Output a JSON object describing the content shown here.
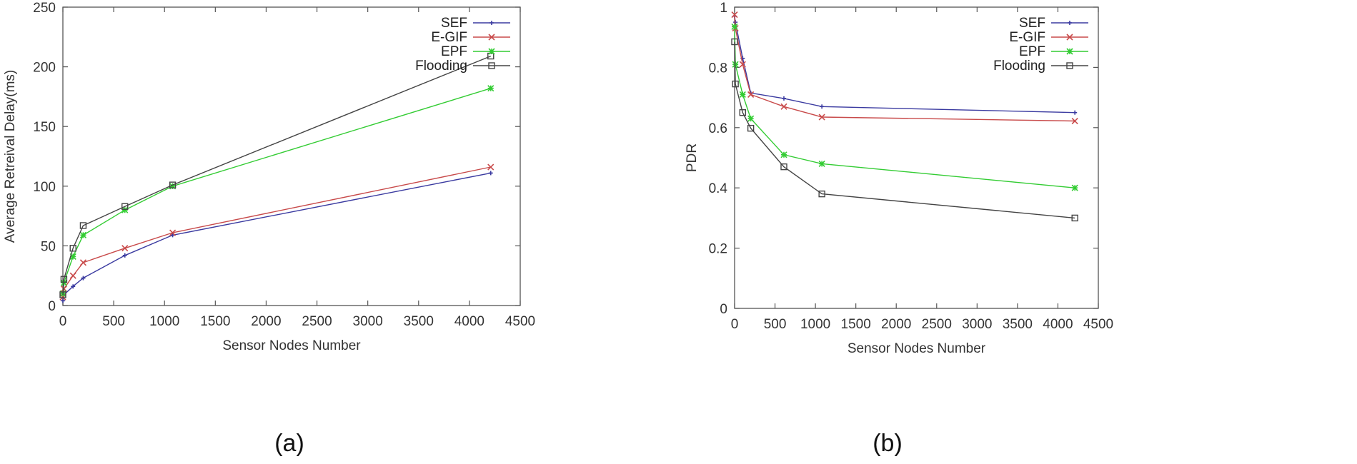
{
  "chart_data": [
    {
      "type": "line",
      "panel_label": "(a)",
      "xlabel": "Sensor Nodes Number",
      "ylabel": "Average Retreival Delay(ms)",
      "xlim": [
        0,
        4500
      ],
      "ylim": [
        0,
        250
      ],
      "xticks": [
        0,
        500,
        1000,
        1500,
        2000,
        2500,
        3000,
        3500,
        4000,
        4500
      ],
      "yticks": [
        0,
        50,
        100,
        150,
        200,
        250
      ],
      "grid": false,
      "legend": "top-right",
      "series": [
        {
          "name": "SEF",
          "color": "#3a3aa0",
          "marker": "plus",
          "x": [
            0,
            10,
            100,
            200,
            610,
            1080,
            4210
          ],
          "y": [
            4,
            9,
            16,
            23,
            42,
            59,
            111
          ]
        },
        {
          "name": "E-GIF",
          "color": "#c84a4a",
          "marker": "cross",
          "x": [
            0,
            10,
            100,
            200,
            610,
            1080,
            4210
          ],
          "y": [
            7,
            14,
            25,
            36,
            48,
            61,
            116
          ]
        },
        {
          "name": "EPF",
          "color": "#33cc33",
          "marker": "asterisk",
          "x": [
            0,
            10,
            100,
            200,
            610,
            1080,
            4210
          ],
          "y": [
            10,
            19,
            41,
            59,
            80,
            100,
            182
          ]
        },
        {
          "name": "Flooding",
          "color": "#444444",
          "marker": "square",
          "x": [
            0,
            10,
            100,
            200,
            610,
            1080,
            4210
          ],
          "y": [
            9,
            22,
            48,
            67,
            83,
            101,
            209
          ]
        }
      ]
    },
    {
      "type": "line",
      "panel_label": "(b)",
      "xlabel": "Sensor Nodes Number",
      "ylabel": "PDR",
      "xlim": [
        0,
        4500
      ],
      "ylim": [
        0,
        1
      ],
      "xticks": [
        0,
        500,
        1000,
        1500,
        2000,
        2500,
        3000,
        3500,
        4000,
        4500
      ],
      "yticks": [
        0,
        0.2,
        0.4,
        0.6,
        0.8,
        1
      ],
      "grid": false,
      "legend": "top-right",
      "series": [
        {
          "name": "SEF",
          "color": "#3a3aa0",
          "marker": "plus",
          "x": [
            0,
            10,
            100,
            200,
            610,
            1080,
            4210
          ],
          "y": [
            0.97,
            0.95,
            0.83,
            0.715,
            0.697,
            0.67,
            0.65
          ]
        },
        {
          "name": "E-GIF",
          "color": "#c84a4a",
          "marker": "cross",
          "x": [
            0,
            10,
            100,
            200,
            610,
            1080,
            4210
          ],
          "y": [
            0.975,
            0.93,
            0.81,
            0.71,
            0.67,
            0.635,
            0.622
          ]
        },
        {
          "name": "EPF",
          "color": "#33cc33",
          "marker": "asterisk",
          "x": [
            0,
            10,
            100,
            200,
            610,
            1080,
            4210
          ],
          "y": [
            0.935,
            0.81,
            0.71,
            0.63,
            0.51,
            0.48,
            0.4
          ]
        },
        {
          "name": "Flooding",
          "color": "#444444",
          "marker": "square",
          "x": [
            0,
            10,
            100,
            200,
            610,
            1080,
            4210
          ],
          "y": [
            0.885,
            0.745,
            0.65,
            0.598,
            0.47,
            0.38,
            0.3
          ]
        }
      ]
    }
  ]
}
